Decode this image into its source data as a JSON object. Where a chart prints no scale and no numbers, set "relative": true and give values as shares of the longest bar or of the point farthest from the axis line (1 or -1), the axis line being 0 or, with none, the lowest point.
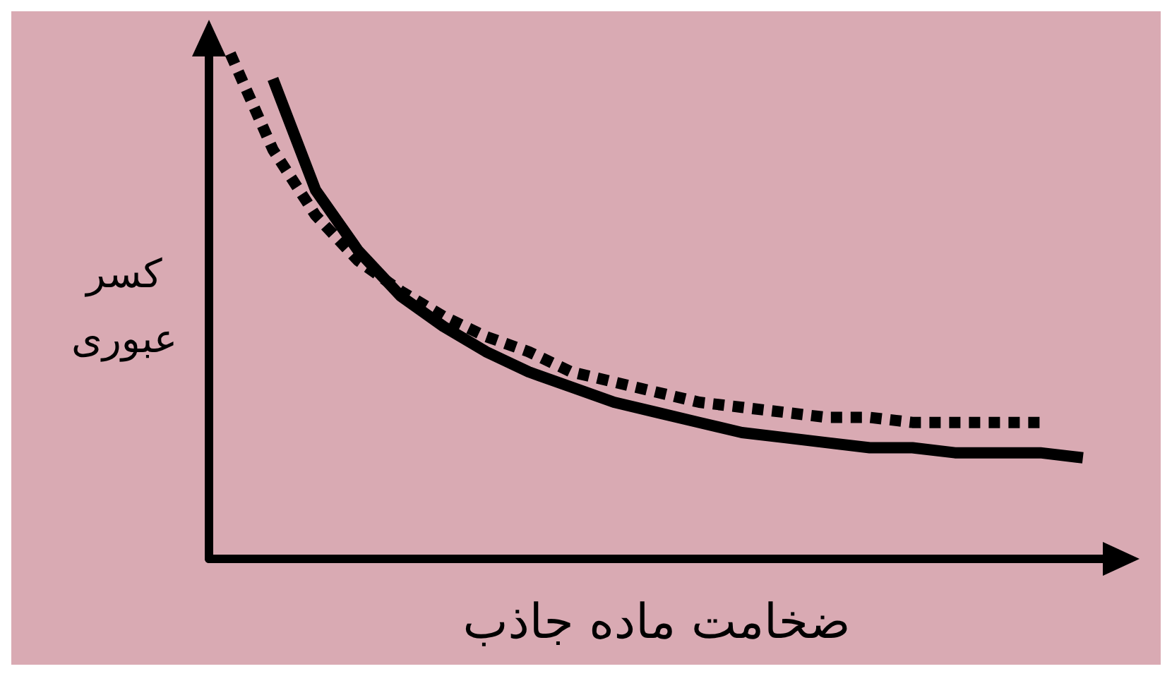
{
  "chart_data": {
    "type": "line",
    "relative": true,
    "xlabel": "ضخامت ماده جاذب",
    "ylabel": "کسر\nعبوری",
    "categories": [
      null,
      null,
      null,
      null,
      null,
      null,
      null,
      null,
      null,
      null,
      null,
      null,
      null,
      null,
      null,
      null,
      null,
      null,
      null,
      null,
      null
    ],
    "series": [
      {
        "color": "#000000",
        "line_style": "solid",
        "values": [
          null,
          0.95,
          0.73,
          0.61,
          0.52,
          0.46,
          0.41,
          0.37,
          0.34,
          0.31,
          0.29,
          0.27,
          0.25,
          0.24,
          0.23,
          0.22,
          0.22,
          0.21,
          0.21,
          0.21,
          0.2
        ]
      },
      {
        "color": "#000000",
        "line_style": "dotted",
        "values": [
          1,
          0.81,
          0.68,
          0.59,
          0.53,
          0.48,
          0.44,
          0.41,
          0.37,
          0.35,
          0.33,
          0.31,
          0.3,
          0.29,
          0.28,
          0.28,
          0.27,
          0.27,
          0.27,
          0.27,
          null
        ]
      }
    ],
    "grid": false,
    "marker": "none"
  }
}
